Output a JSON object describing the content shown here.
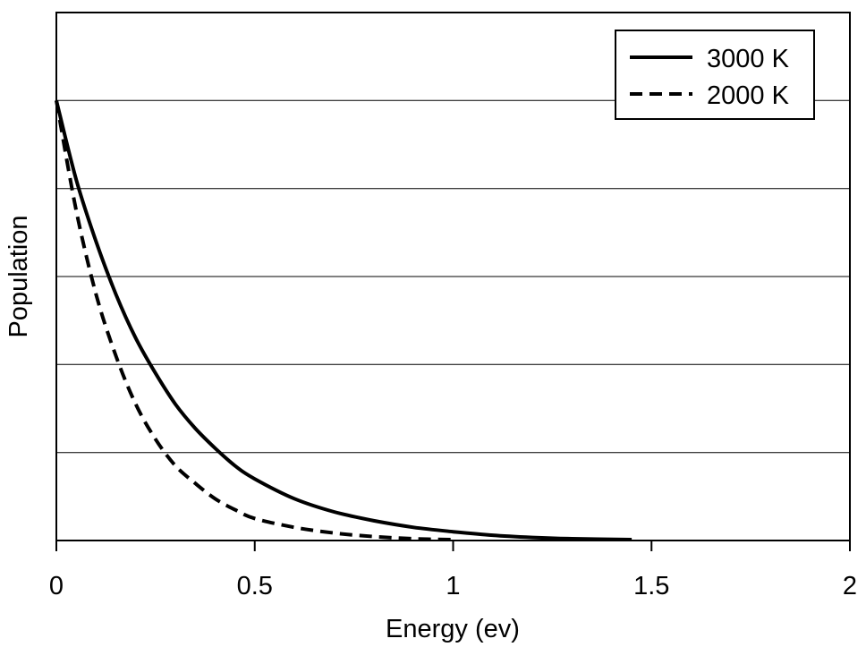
{
  "chart_data": {
    "type": "line",
    "xlabel": "Energy (ev)",
    "ylabel": "Population",
    "xlim": [
      0,
      2
    ],
    "ylim": [
      0,
      1.2
    ],
    "x_ticks": [
      0,
      0.5,
      1,
      1.5,
      2
    ],
    "x_tick_labels": [
      "0",
      "0.5",
      "1",
      "1.5",
      "2"
    ],
    "y_gridlines": [
      0.2,
      0.4,
      0.6,
      0.8,
      1.0
    ],
    "grid": "horizontal",
    "legend_position": "top-right",
    "series": [
      {
        "name": "3000 K",
        "style": "solid",
        "color": "#000000",
        "x": [
          0,
          0.05,
          0.1,
          0.15,
          0.2,
          0.25,
          0.3,
          0.35,
          0.4,
          0.45,
          0.5,
          0.6,
          0.7,
          0.8,
          0.9,
          1.0,
          1.1,
          1.2,
          1.3,
          1.45
        ],
        "y": [
          1.0,
          0.82,
          0.68,
          0.56,
          0.46,
          0.38,
          0.31,
          0.255,
          0.21,
          0.17,
          0.14,
          0.095,
          0.065,
          0.045,
          0.03,
          0.02,
          0.012,
          0.007,
          0.004,
          0.002
        ]
      },
      {
        "name": "2000 K",
        "style": "dashed",
        "color": "#000000",
        "x": [
          0,
          0.05,
          0.1,
          0.15,
          0.2,
          0.25,
          0.3,
          0.35,
          0.4,
          0.45,
          0.5,
          0.6,
          0.7,
          0.8,
          0.9,
          1.0
        ],
        "y": [
          1.0,
          0.75,
          0.56,
          0.42,
          0.31,
          0.23,
          0.17,
          0.13,
          0.095,
          0.07,
          0.05,
          0.03,
          0.017,
          0.009,
          0.004,
          0.002
        ]
      }
    ]
  }
}
